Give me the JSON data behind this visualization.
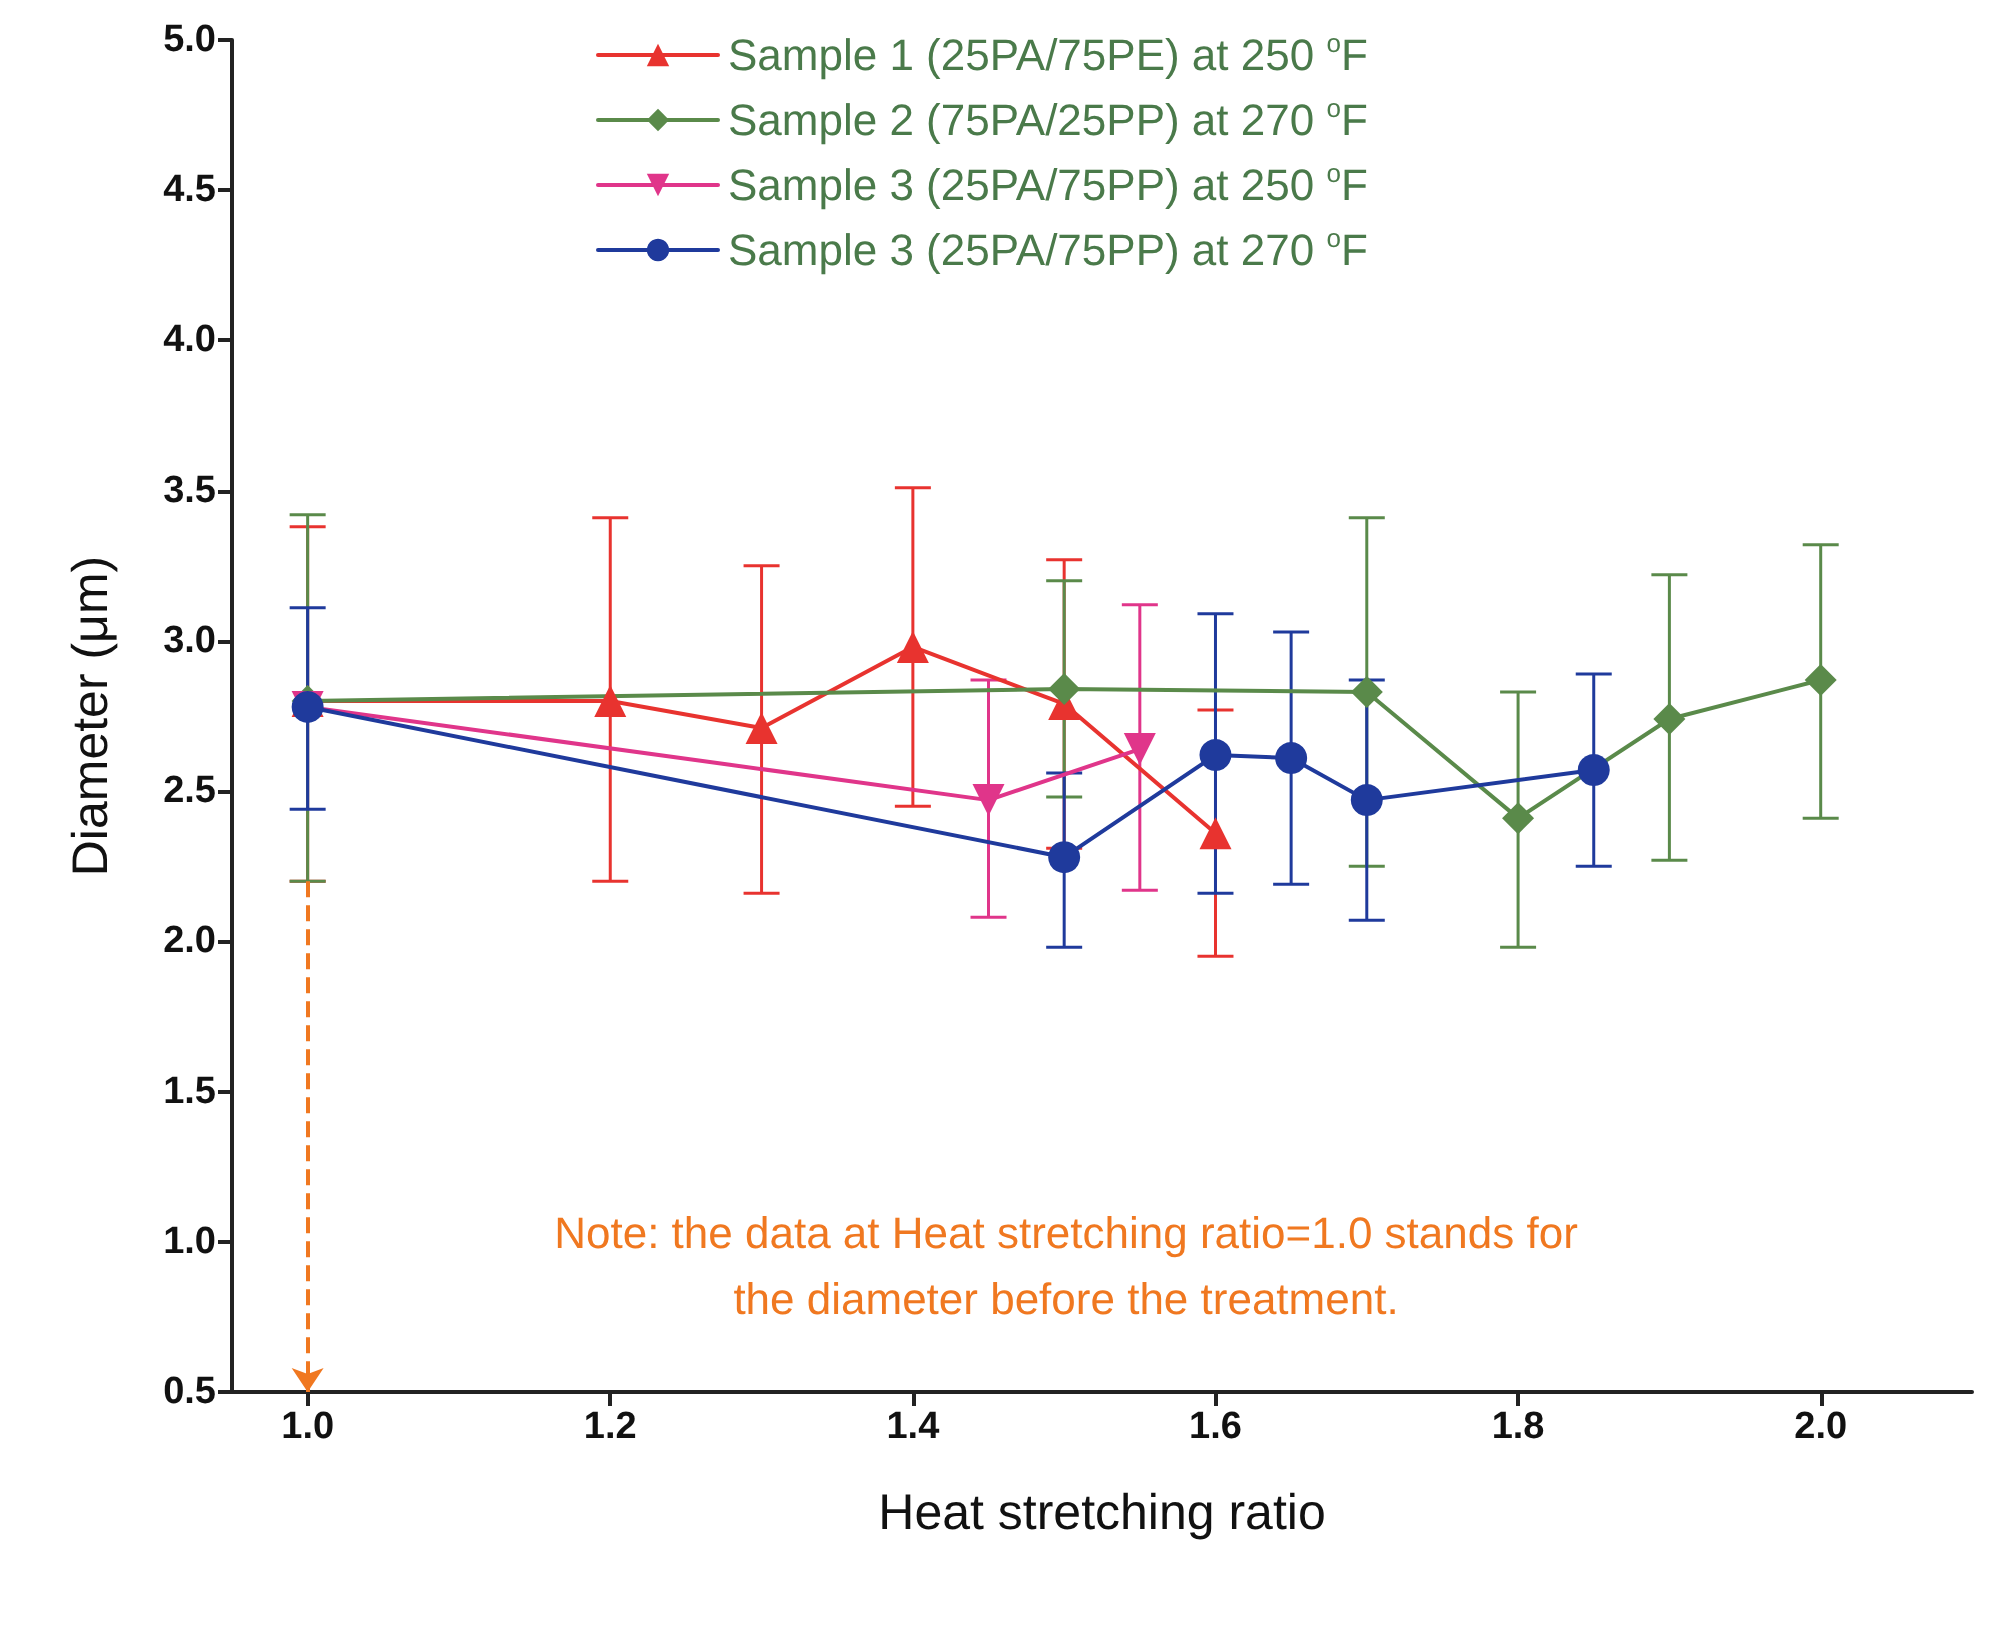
{
  "chart_data": {
    "type": "line",
    "xlabel": "Heat stretching ratio",
    "ylabel": "Diameter (μm)",
    "xlim": [
      0.95,
      2.1
    ],
    "xticks": [
      {
        "value": 1,
        "label": "1.0"
      },
      1.2,
      1.4,
      1.6,
      1.8,
      {
        "value": 2,
        "label": "2.0"
      }
    ],
    "ylim": [
      0.5,
      5
    ],
    "yticks": [
      0.5,
      {
        "value": 1,
        "label": "1.0"
      },
      1.5,
      {
        "value": 2,
        "label": "2.0"
      },
      2.5,
      {
        "value": 3,
        "label": "3.0"
      },
      3.5,
      {
        "value": 4,
        "label": "4.0"
      },
      4.5,
      {
        "value": 5,
        "label": "5.0"
      }
    ],
    "grid": false,
    "legend": "top",
    "line_style": "solid",
    "series": [
      {
        "name": "Sample 1 (25PA/75PE) at 250 $^{o}$F",
        "color": "#e8332f",
        "marker": "triangle",
        "x": [
          1.0,
          1.2,
          1.3,
          1.4,
          1.5,
          1.6
        ],
        "values": [
          2.8,
          2.8,
          2.71,
          2.98,
          2.79,
          2.36
        ],
        "errors": [
          [
            2.2,
            3.38
          ],
          [
            2.2,
            3.41
          ],
          [
            2.16,
            3.25
          ],
          [
            2.45,
            3.51
          ],
          [
            2.31,
            3.27
          ],
          [
            1.95,
            2.77
          ]
        ]
      },
      {
        "name": "Sample 2 (75PA/25PP) at 270 $^{o}$F",
        "color": "#5a8a4a",
        "marker": "diamond",
        "x": [
          1.0,
          1.5,
          1.7,
          1.8,
          1.9,
          2.0
        ],
        "values": [
          2.8,
          2.84,
          2.83,
          2.41,
          2.74,
          2.87
        ],
        "errors": [
          [
            2.2,
            3.42
          ],
          [
            2.48,
            3.2
          ],
          [
            2.25,
            3.41
          ],
          [
            1.98,
            2.83
          ],
          [
            2.27,
            3.22
          ],
          [
            2.41,
            3.32
          ]
        ]
      },
      {
        "name": "Sample 3 (25PA/75PP) at 250 $^{o}$F",
        "color": "#e0358a",
        "marker": "triangle-down",
        "x": [
          1.0,
          1.45,
          1.55
        ],
        "values": [
          2.78,
          2.47,
          2.64
        ],
        "errors": [
          null,
          [
            2.08,
            2.87
          ],
          [
            2.17,
            3.12
          ]
        ]
      },
      {
        "name": "Sample 3 (25PA/75PP) at 270 $^{o}$F",
        "color": "#1f3a9c",
        "marker": "circle",
        "x": [
          1.0,
          1.5,
          1.6,
          1.65,
          1.7,
          1.85
        ],
        "values": [
          2.78,
          2.28,
          2.62,
          2.61,
          2.47,
          2.57
        ],
        "errors": [
          [
            2.44,
            3.11
          ],
          [
            1.98,
            2.56
          ],
          [
            2.16,
            3.09
          ],
          [
            2.19,
            3.03
          ],
          [
            2.07,
            2.87
          ],
          [
            2.25,
            2.89
          ]
        ]
      }
    ],
    "annotations": [
      "Note: the data at Heat stretching ratio=1.0 stands for\nthe diameter before the treatment."
    ]
  }
}
